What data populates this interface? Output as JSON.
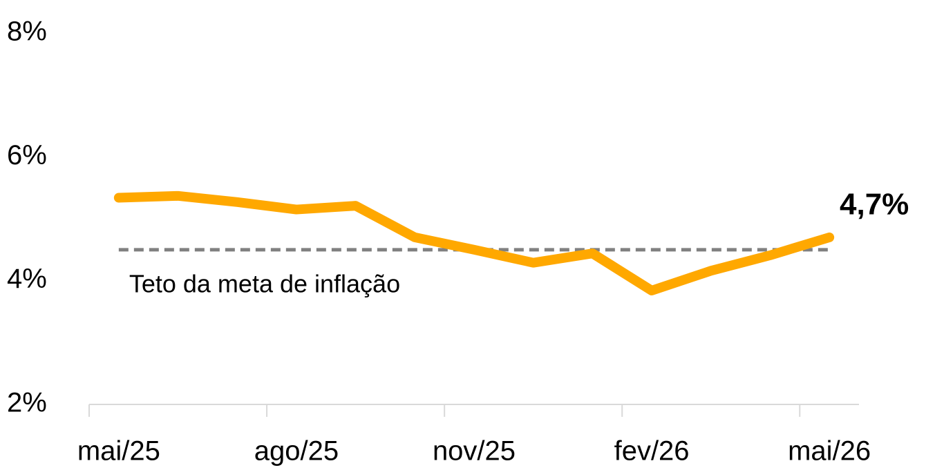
{
  "chart_data": {
    "type": "line",
    "categories": [
      "mai/25",
      null,
      null,
      "ago/25",
      null,
      null,
      "nov/25",
      null,
      null,
      "fev/26",
      null,
      null,
      "mai/26"
    ],
    "series": [
      {
        "color": "#FFA800",
        "values": [
          5.34,
          5.37,
          5.27,
          5.15,
          5.21,
          4.7,
          4.5,
          4.29,
          4.44,
          3.84,
          4.16,
          4.41,
          4.7
        ],
        "value_labels": [
          null,
          null,
          null,
          null,
          null,
          null,
          null,
          null,
          null,
          null,
          null,
          null,
          "4,7%"
        ]
      }
    ],
    "ylim": [
      2,
      8
    ],
    "yticks": [
      {
        "value": 2,
        "label": "2%"
      },
      {
        "value": 4,
        "label": "4%"
      },
      {
        "value": 6,
        "label": "6%"
      },
      {
        "value": 8,
        "label": "8%"
      }
    ],
    "reference_lines": [
      {
        "value": 4.5,
        "label": "Teto da meta de inflação",
        "color": "#808080"
      }
    ],
    "grid": false
  }
}
